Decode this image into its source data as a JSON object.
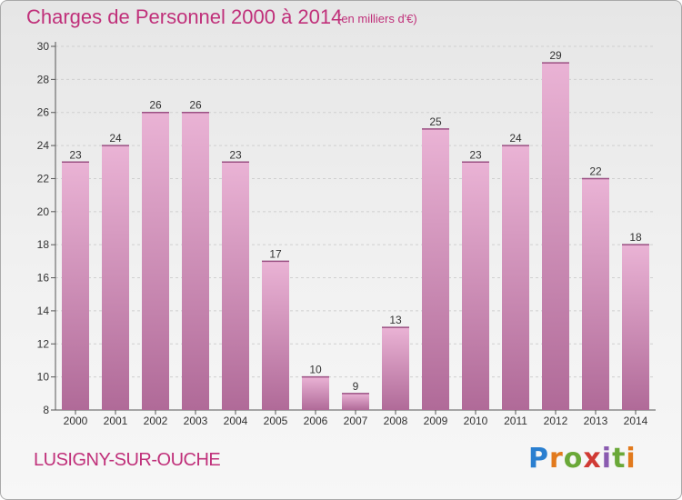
{
  "header": {
    "title": "Charges de Personnel 2000 à 2014",
    "subtitle": "(en milliers d'€)"
  },
  "footer": {
    "commune": "LUSIGNY-SUR-OUCHE",
    "logo_text": "Proxiti"
  },
  "colors": {
    "accent": "#c0307a",
    "bar_top": "#eab3d5",
    "bar_bottom": "#b06a98"
  },
  "chart_data": {
    "type": "bar",
    "categories": [
      "2000",
      "2001",
      "2002",
      "2003",
      "2004",
      "2005",
      "2006",
      "2007",
      "2008",
      "2009",
      "2010",
      "2011",
      "2012",
      "2013",
      "2014"
    ],
    "values": [
      23,
      24,
      26,
      26,
      23,
      17,
      10,
      9,
      13,
      25,
      23,
      24,
      29,
      22,
      18
    ],
    "title": "Charges de Personnel 2000 à 2014",
    "subtitle": "(en milliers d'€)",
    "xlabel": "",
    "ylabel": "",
    "ylim": [
      8,
      30
    ],
    "yticks": [
      8,
      10,
      12,
      14,
      16,
      18,
      20,
      22,
      24,
      26,
      28,
      30
    ],
    "grid": true,
    "legend": "none"
  }
}
